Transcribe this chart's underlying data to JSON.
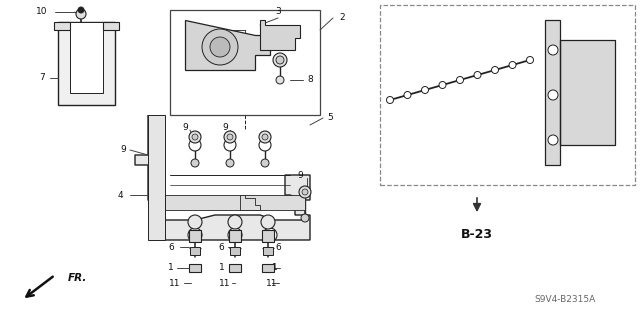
{
  "bg_color": "#ffffff",
  "dc": "#222222",
  "ref_code": "S9V4-B2315A",
  "ref_label": "B-23",
  "fig_w": 6.4,
  "fig_h": 3.19,
  "dpi": 100
}
